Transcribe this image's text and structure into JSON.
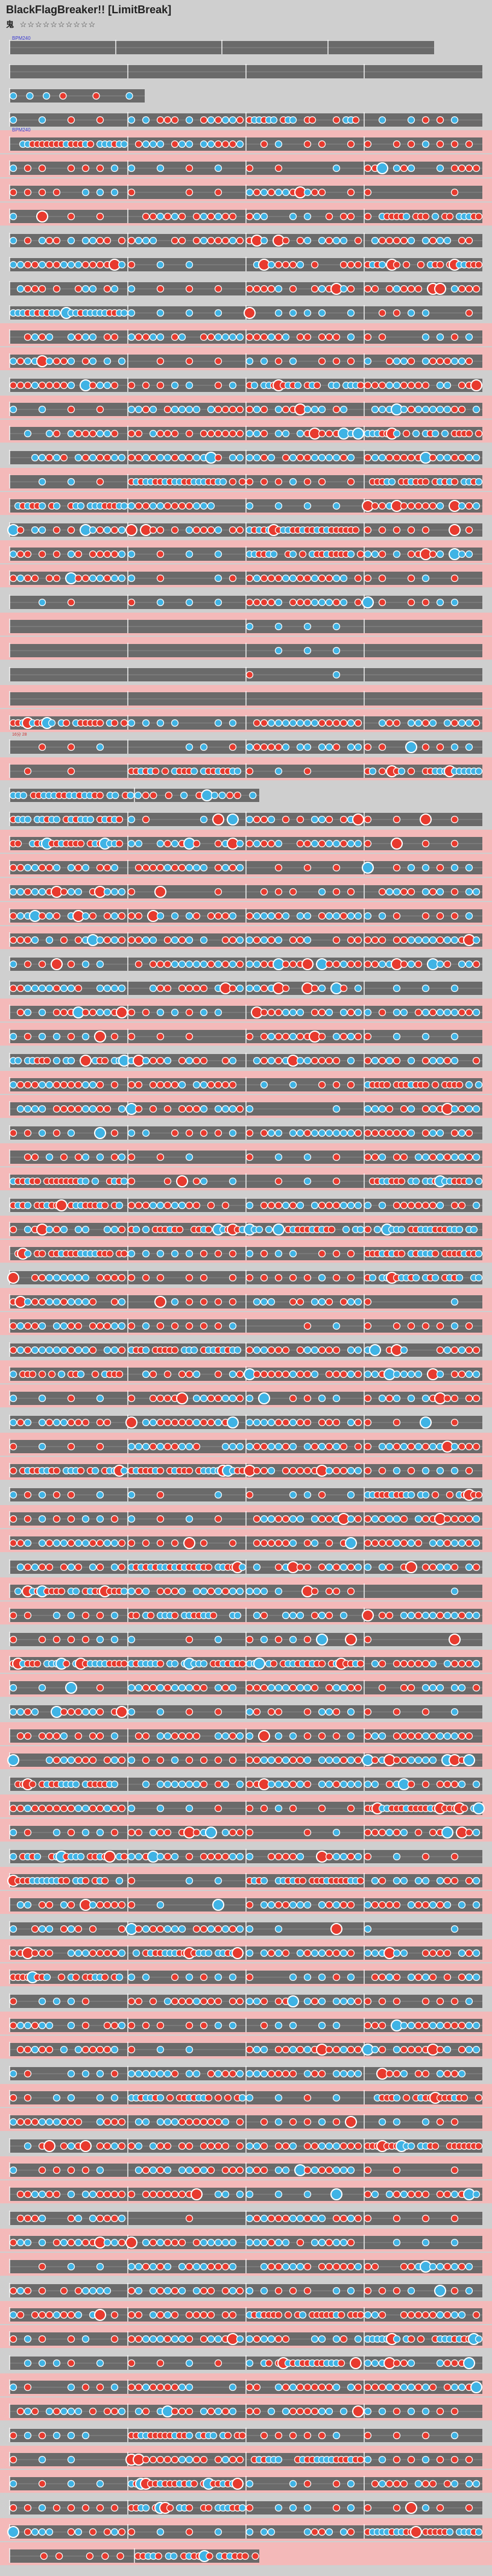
{
  "song": {
    "title": "BlackFlagBreaker!! [LimitBreak]",
    "difficulty_label": "鬼",
    "stars": "☆☆☆☆☆☆☆☆☆☆"
  },
  "colors": {
    "background": "#cfcfcf",
    "lane": "#6a6a6a",
    "lane_gogo": "#f4b9b9",
    "don": "#e83a2e",
    "ka": "#3fb3e5",
    "note_border": "#ffffff",
    "barline": "#f2f2f2",
    "bpm_text": "#3a3ad0",
    "measure_text": "#ffffff",
    "event_text": "#d03030"
  },
  "markers": {
    "bpm_start": "BPM240",
    "bpm_mid": "BPM240",
    "event_red": "16分 28"
  },
  "rows": 105,
  "gogo_rows": [
    4,
    5,
    6,
    7,
    12,
    13,
    15,
    16,
    18,
    19,
    21,
    22,
    24,
    25,
    27,
    28,
    30,
    33,
    34,
    35,
    36,
    37,
    40,
    41,
    43,
    44,
    46,
    47,
    49,
    50,
    52,
    53,
    55,
    56,
    58,
    59,
    61,
    62,
    64,
    65,
    67,
    68,
    70,
    71,
    73,
    74,
    76,
    77,
    79,
    80,
    82,
    83,
    85,
    86,
    88,
    89,
    91,
    92,
    94,
    95,
    97,
    98,
    100,
    101,
    103,
    104
  ],
  "pattern_seed": 7
}
